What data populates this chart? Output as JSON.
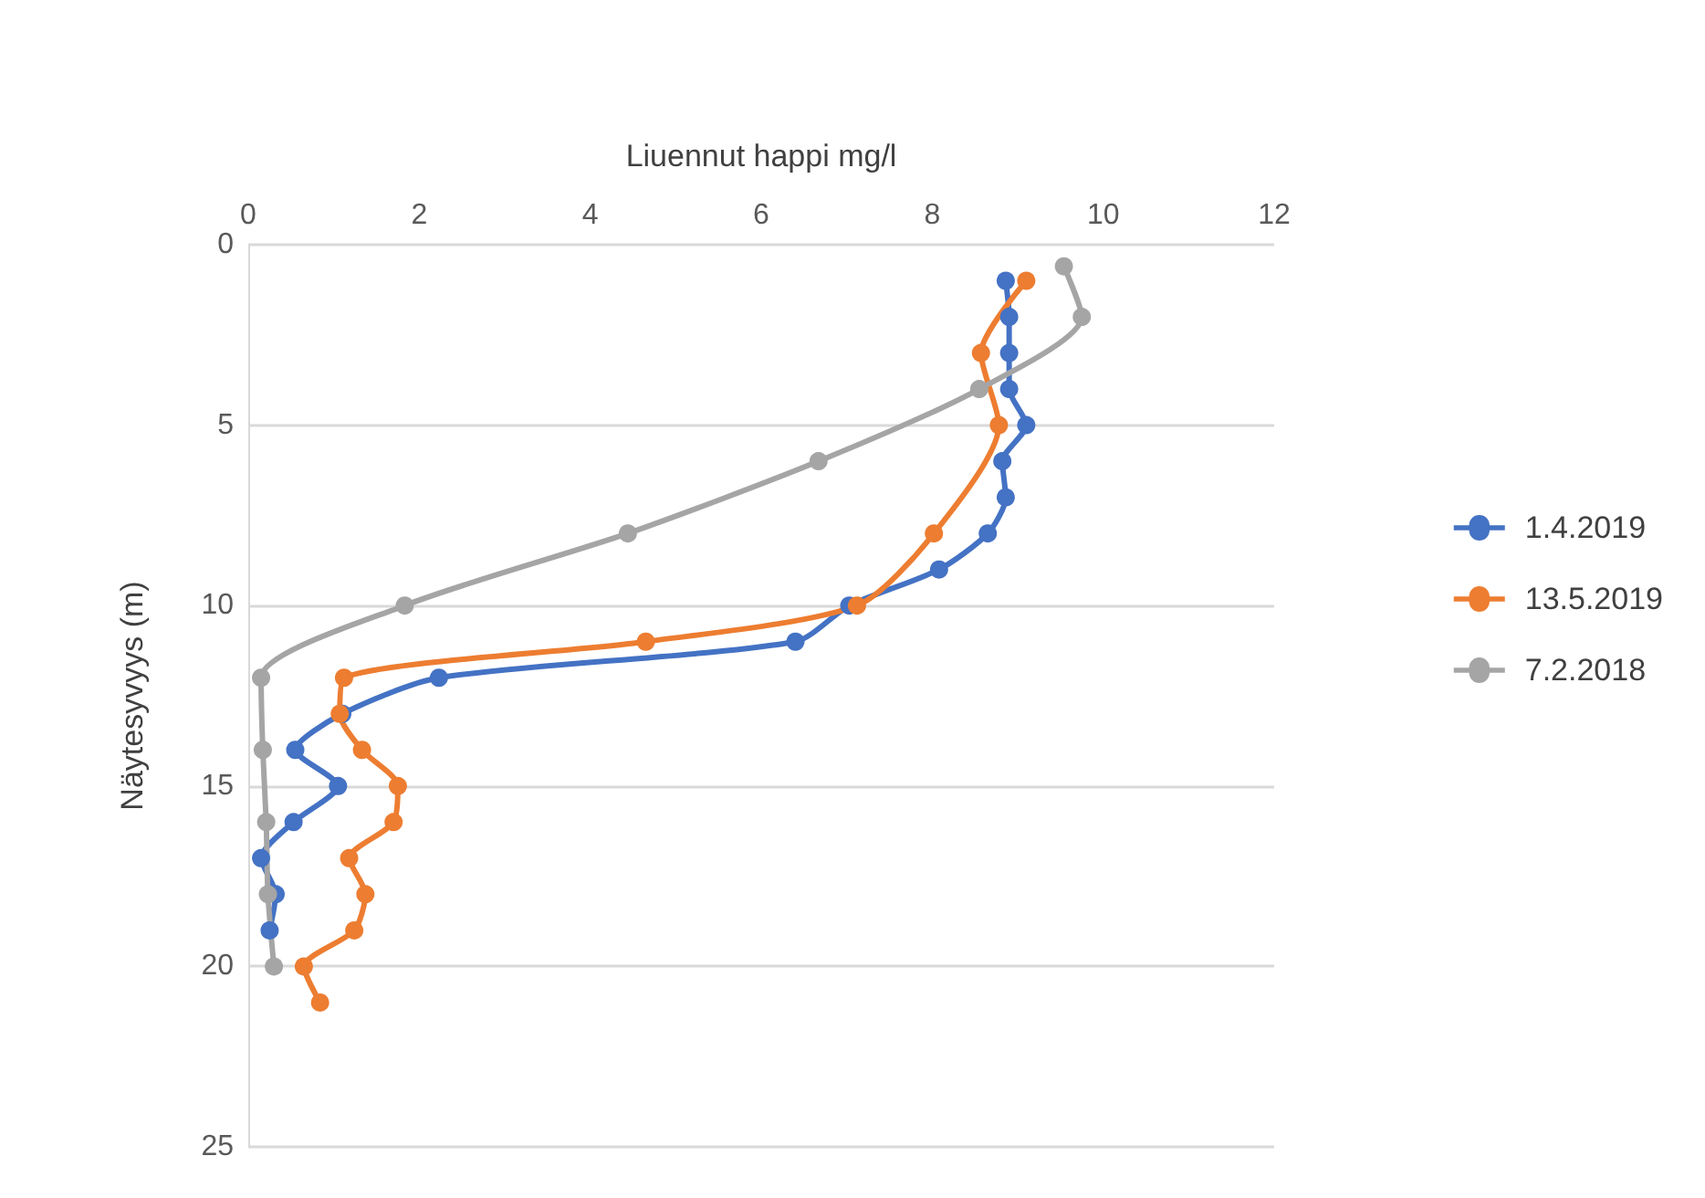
{
  "chart_data": {
    "type": "line",
    "xlabel": "Liuennut happi mg/l",
    "ylabel": "Näytesyvyys (m)",
    "xlim": [
      0,
      12
    ],
    "xticks": [
      0,
      2,
      4,
      6,
      8,
      10,
      12
    ],
    "ylim": [
      25,
      0
    ],
    "yticks": [
      0,
      5,
      10,
      15,
      20,
      25
    ],
    "grid": "y",
    "legend": "right",
    "marker": "circle",
    "line_style": "solid",
    "series": [
      {
        "name": "1.4.2019",
        "color": "#4472c4",
        "x": [
          8.86,
          8.9,
          8.9,
          8.9,
          9.1,
          8.82,
          8.86,
          8.65,
          8.08,
          7.03,
          6.4,
          2.23,
          1.1,
          0.55,
          1.05,
          0.53,
          0.15,
          0.32,
          0.25
        ],
        "values": [
          1,
          2,
          3,
          4,
          5,
          6,
          7,
          8,
          9,
          10,
          11,
          12,
          13,
          14,
          15,
          16,
          17,
          18,
          19
        ]
      },
      {
        "name": "13.5.2019",
        "color": "#ed7d31",
        "x": [
          9.1,
          8.57,
          8.78,
          8.02,
          7.12,
          4.65,
          1.12,
          1.07,
          1.33,
          1.75,
          1.7,
          1.18,
          1.37,
          1.24,
          0.65,
          0.84
        ],
        "values": [
          1,
          3,
          5,
          8,
          10,
          11,
          12,
          13,
          14,
          15,
          16,
          17,
          18,
          19,
          20,
          21
        ]
      },
      {
        "name": "7.2.2018",
        "color": "#a5a5a5",
        "x": [
          9.54,
          9.75,
          8.55,
          6.67,
          4.44,
          1.83,
          0.15,
          0.17,
          0.21,
          0.23,
          0.3
        ],
        "values": [
          0.6,
          2,
          4,
          6,
          8,
          10,
          12,
          14,
          16,
          18,
          20
        ]
      }
    ]
  }
}
